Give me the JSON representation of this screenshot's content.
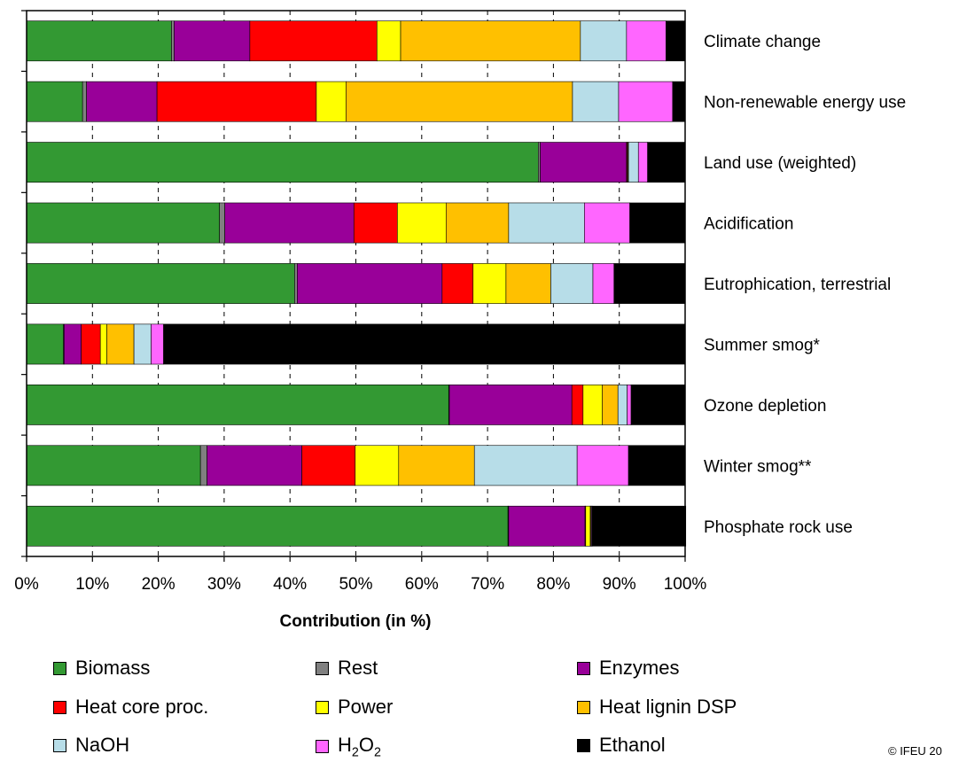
{
  "chart_data": {
    "type": "bar",
    "orientation": "horizontal",
    "stacked": true,
    "xlabel": "Contribution (in %)",
    "xlim": [
      0,
      100
    ],
    "xticks": [
      "0%",
      "10%",
      "20%",
      "30%",
      "40%",
      "50%",
      "60%",
      "70%",
      "80%",
      "90%",
      "100%"
    ],
    "grid": "vertical dashed",
    "legend_position": "bottom",
    "categories": [
      "Climate change",
      "Non-renewable energy use",
      "Land use (weighted)",
      "Acidification",
      "Eutrophication, terrestrial",
      "Summer smog*",
      "Ozone depletion",
      "Winter smog**",
      "Phosphate rock use"
    ],
    "series": [
      {
        "name": "Biomass",
        "color": "#339933",
        "values": [
          22.0,
          8.5,
          77.7,
          29.3,
          40.7,
          5.6,
          64.1,
          26.4,
          73.1
        ]
      },
      {
        "name": "Rest",
        "color": "#808080",
        "values": [
          0.4,
          0.6,
          0.3,
          0.8,
          0.4,
          0.1,
          0.1,
          1.0,
          0.1
        ]
      },
      {
        "name": "Enzymes",
        "color": "#990099",
        "values": [
          11.5,
          10.7,
          13.1,
          19.6,
          22.0,
          2.6,
          18.6,
          14.4,
          11.6
        ]
      },
      {
        "name": "Heat core proc.",
        "color": "#ff0000",
        "values": [
          19.3,
          24.2,
          0.1,
          6.6,
          4.7,
          2.9,
          1.7,
          8.1,
          0.1
        ]
      },
      {
        "name": "Power",
        "color": "#ffff00",
        "values": [
          3.6,
          4.5,
          0.1,
          7.4,
          5.0,
          1.0,
          2.9,
          6.6,
          0.7
        ]
      },
      {
        "name": "Heat lignin DSP",
        "color": "#ffc000",
        "values": [
          27.3,
          34.4,
          0.1,
          9.5,
          6.8,
          4.1,
          2.4,
          11.5,
          0.1
        ]
      },
      {
        "name": "NaOH",
        "color": "#b7dde8",
        "values": [
          7.0,
          7.0,
          1.5,
          11.5,
          6.4,
          2.6,
          1.4,
          15.6,
          0.1
        ]
      },
      {
        "name": "H₂O₂",
        "color": "#ff66ff",
        "values": [
          6.0,
          8.2,
          1.4,
          6.9,
          3.2,
          1.9,
          0.6,
          7.8,
          0.1
        ]
      },
      {
        "name": "Ethanol",
        "color": "#000000",
        "values": [
          2.9,
          1.9,
          5.7,
          8.4,
          10.8,
          79.2,
          8.2,
          8.6,
          14.2
        ]
      }
    ]
  },
  "legend": [
    {
      "label": "Biomass",
      "color": "#339933"
    },
    {
      "label": "Rest",
      "color": "#808080"
    },
    {
      "label": "Enzymes",
      "color": "#990099"
    },
    {
      "label": "Heat core proc.",
      "color": "#ff0000"
    },
    {
      "label": "Power",
      "color": "#ffff00"
    },
    {
      "label": "Heat lignin DSP",
      "color": "#ffc000"
    },
    {
      "label": "NaOH",
      "color": "#b7dde8"
    },
    {
      "label_main": "H",
      "label_sub1": "2",
      "label_mid": "O",
      "label_sub2": "2",
      "color": "#ff66ff"
    },
    {
      "label": "Ethanol",
      "color": "#000000"
    }
  ],
  "copyright": "© IFEU 20"
}
